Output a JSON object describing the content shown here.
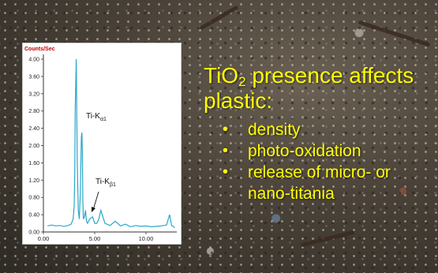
{
  "slide": {
    "headline_prefix": "TiO",
    "headline_sub": "2",
    "headline_suffix": " presence affects",
    "headline_line2": "plastic:",
    "bullets": [
      {
        "text": "density"
      },
      {
        "text": "photo-oxidation"
      },
      {
        "text": "release of micro- or"
      },
      {
        "text": "nano-titania"
      }
    ]
  },
  "colors": {
    "text": "#ffff00",
    "spectrum": "#2aa7c9"
  },
  "chart_data": {
    "type": "line",
    "ylabel": "Counts/Sec",
    "ylim": [
      0,
      4.0
    ],
    "xlim": [
      0,
      13
    ],
    "y_ticks": [
      "4.00",
      "3.60",
      "3.20",
      "2.80",
      "2.40",
      "2.00",
      "1.60",
      "1.20",
      "0.80",
      "0.40",
      "0.00"
    ],
    "x_ticks": [
      "0.00",
      "5.00",
      "10.00"
    ],
    "annotations": [
      {
        "label": "Ti-K",
        "sub": "α1"
      },
      {
        "label": "Ti-K",
        "sub": "β1"
      }
    ],
    "series": [
      {
        "x": [
          0.4,
          0.8,
          1.2,
          1.6,
          2.0,
          2.4,
          2.7,
          2.9,
          3.0,
          3.05,
          3.1,
          3.2,
          3.3,
          3.4,
          3.5,
          3.6,
          3.7,
          3.75,
          3.8,
          3.85,
          3.9,
          4.0,
          4.1,
          4.2,
          4.3,
          4.5,
          4.8,
          5.0,
          5.2,
          5.4,
          5.6,
          5.8,
          6.0,
          6.5,
          7.0,
          7.5,
          8.0,
          8.5,
          9.0,
          9.5,
          10.0,
          10.5,
          11.0,
          11.5,
          12.0,
          12.3,
          12.5,
          12.8
        ],
        "y": [
          0.14,
          0.16,
          0.14,
          0.15,
          0.13,
          0.15,
          0.18,
          0.3,
          0.6,
          1.3,
          2.8,
          4.0,
          1.6,
          0.5,
          0.3,
          0.9,
          2.2,
          2.3,
          1.8,
          0.7,
          0.3,
          0.35,
          0.5,
          0.25,
          0.2,
          0.3,
          0.35,
          0.2,
          0.2,
          0.3,
          0.5,
          0.35,
          0.2,
          0.15,
          0.25,
          0.14,
          0.18,
          0.12,
          0.15,
          0.13,
          0.14,
          0.12,
          0.13,
          0.14,
          0.16,
          0.4,
          0.15,
          0.1
        ]
      }
    ]
  }
}
